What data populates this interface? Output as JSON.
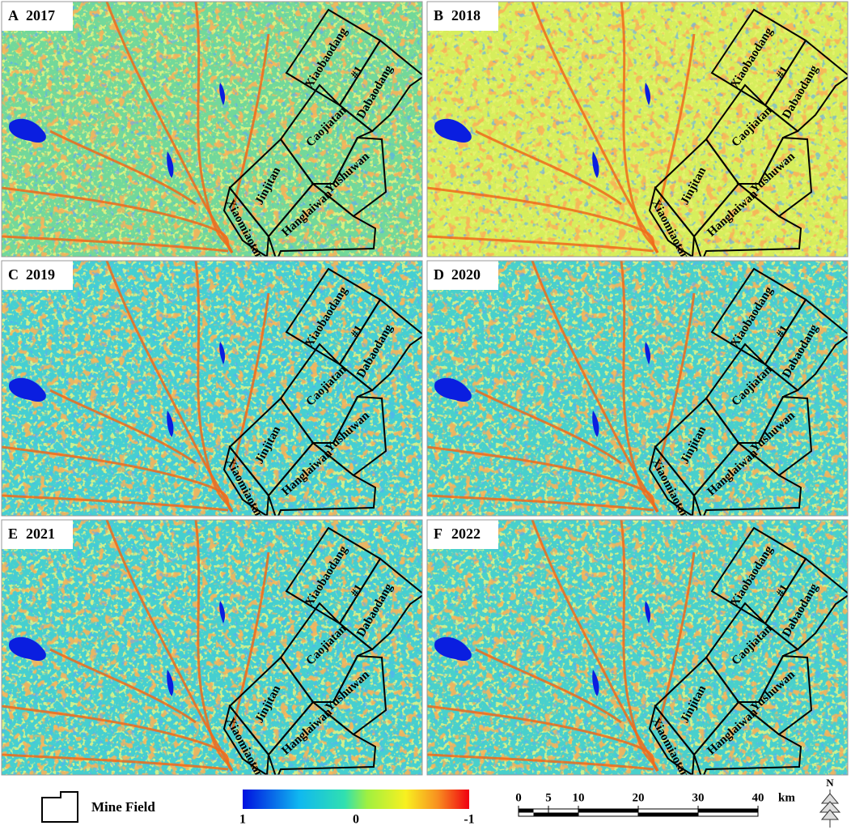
{
  "panels": [
    {
      "letter": "A",
      "year": "2017"
    },
    {
      "letter": "B",
      "year": "2018"
    },
    {
      "letter": "C",
      "year": "2019"
    },
    {
      "letter": "D",
      "year": "2020"
    },
    {
      "letter": "E",
      "year": "2021"
    },
    {
      "letter": "F",
      "year": "2022"
    }
  ],
  "mine_fields": {
    "xiaobaodang": "Xiaobaodang",
    "xiaobaodang_suffix": "#1",
    "dabaodang": "Dabaodang",
    "caojiatan": "Caojiatan",
    "jinjitan": "Jinjitan",
    "yushuwan": "Yushuwan",
    "hanglaiwan": "Hanglaiwan",
    "xiaomiaotan": "Xiaomiaotan"
  },
  "legend": {
    "mine_field": "Mine Field",
    "colorbar_ticks": [
      1,
      0,
      -1
    ]
  },
  "scale_bar": {
    "ticks": [
      0,
      5,
      10,
      20,
      30,
      40
    ],
    "unit": "km"
  },
  "north": "N"
}
